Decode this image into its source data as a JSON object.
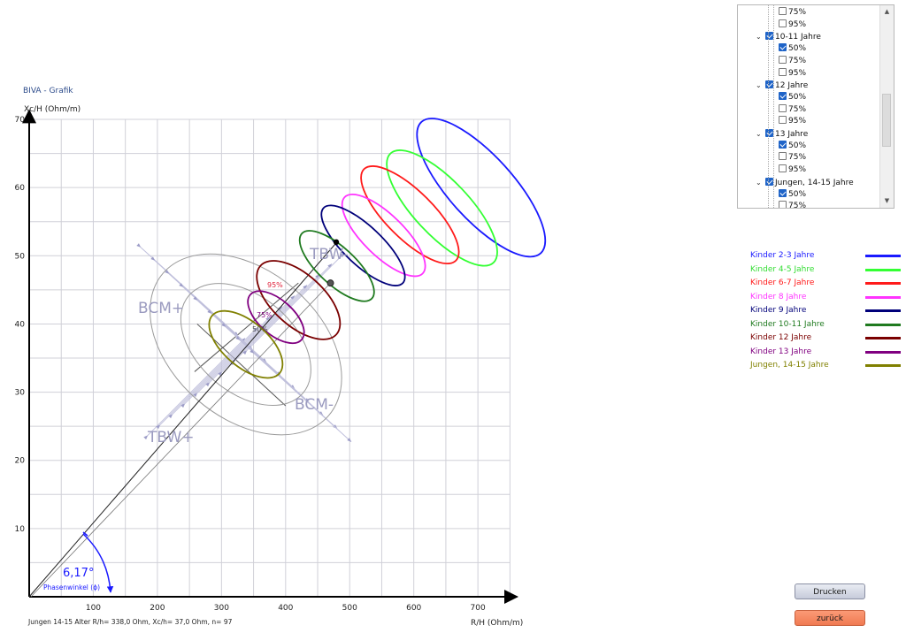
{
  "window_title": "BIVA - Grafik",
  "footer_text": "Jungen 14-15 Alter R/h= 338,0 Ohm, Xc/h= 37,0 Ohm, n= 97",
  "tree": {
    "rows": [
      {
        "indent": 2,
        "chev": false,
        "checked": false,
        "label": "75%"
      },
      {
        "indent": 2,
        "chev": false,
        "checked": false,
        "label": "95%"
      },
      {
        "indent": 1,
        "chev": true,
        "checked": true,
        "label": "10-11 Jahre"
      },
      {
        "indent": 2,
        "chev": false,
        "checked": true,
        "label": "50%"
      },
      {
        "indent": 2,
        "chev": false,
        "checked": false,
        "label": "75%"
      },
      {
        "indent": 2,
        "chev": false,
        "checked": false,
        "label": "95%"
      },
      {
        "indent": 1,
        "chev": true,
        "checked": true,
        "label": "12 Jahre"
      },
      {
        "indent": 2,
        "chev": false,
        "checked": true,
        "label": "50%"
      },
      {
        "indent": 2,
        "chev": false,
        "checked": false,
        "label": "75%"
      },
      {
        "indent": 2,
        "chev": false,
        "checked": false,
        "label": "95%"
      },
      {
        "indent": 1,
        "chev": true,
        "checked": true,
        "label": "13 Jahre"
      },
      {
        "indent": 2,
        "chev": false,
        "checked": true,
        "label": "50%"
      },
      {
        "indent": 2,
        "chev": false,
        "checked": false,
        "label": "75%"
      },
      {
        "indent": 2,
        "chev": false,
        "checked": false,
        "label": "95%"
      },
      {
        "indent": 1,
        "chev": true,
        "checked": true,
        "label": "Jungen, 14-15 Jahre"
      },
      {
        "indent": 2,
        "chev": false,
        "checked": true,
        "label": "50%"
      },
      {
        "indent": 2,
        "chev": false,
        "checked": false,
        "label": "75%"
      }
    ]
  },
  "legend": [
    {
      "label": "Kinder 2-3 Jahre",
      "color": "#1a1aff"
    },
    {
      "label": "Kinder 4-5 Jahre",
      "color": "#33ff33"
    },
    {
      "label": "Kinder 6-7 Jahre",
      "color": "#ff1a1a"
    },
    {
      "label": "Kinder 8 Jahre",
      "color": "#ff33ff"
    },
    {
      "label": "Kinder 9 Jahre",
      "color": "#00007a"
    },
    {
      "label": "Kinder 10-11 Jahre",
      "color": "#1f7a1f"
    },
    {
      "label": "Kinder 12 Jahre",
      "color": "#7a0000"
    },
    {
      "label": "Kinder 13 Jahre",
      "color": "#800080"
    },
    {
      "label": "Jungen, 14-15 Jahre",
      "color": "#808000"
    }
  ],
  "buttons": {
    "print": "Drucken",
    "back": "zurück"
  },
  "chart_data": {
    "type": "scatter",
    "xlabel": "R/H (Ohm/m)",
    "ylabel": "Xc/H (Ohm/m)",
    "xlim": [
      0,
      750
    ],
    "ylim": [
      0,
      70
    ],
    "xticks": [
      100,
      200,
      300,
      400,
      500,
      600,
      700
    ],
    "yticks": [
      10,
      20,
      30,
      40,
      50,
      60,
      70
    ],
    "grid": true,
    "annotations": {
      "tbw_plus": "TBW+",
      "tbw_minus": "TBW-",
      "bcm_plus": "BCM+",
      "bcm_minus": "BCM-",
      "phase_angle_value": "6,17°",
      "phase_angle_label": "Phasenwinkel (ϕ)",
      "pct_95": "95%",
      "pct_75": "75%",
      "pct_50": "50%"
    },
    "group_ellipses_50pct": [
      {
        "group": "Kinder 2-3 Jahre",
        "cx": 705,
        "cy": 60,
        "rx": 50,
        "ry": 13,
        "color": "#1a1aff"
      },
      {
        "group": "Kinder 4-5 Jahre",
        "cx": 644,
        "cy": 57,
        "rx": 43,
        "ry": 11,
        "color": "#33ff33"
      },
      {
        "group": "Kinder 6-7 Jahre",
        "cx": 594,
        "cy": 56,
        "rx": 37,
        "ry": 9.5,
        "color": "#ff1a1a"
      },
      {
        "group": "Kinder 8 Jahre",
        "cx": 553,
        "cy": 53,
        "rx": 32,
        "ry": 8,
        "color": "#ff33ff"
      },
      {
        "group": "Kinder 9 Jahre",
        "cx": 521,
        "cy": 51.5,
        "rx": 30,
        "ry": 8,
        "color": "#00007a"
      },
      {
        "group": "Kinder 10-11 Jahre",
        "cx": 480,
        "cy": 48.5,
        "rx": 29,
        "ry": 7,
        "color": "#1f7a1f"
      },
      {
        "group": "Kinder 12 Jahre",
        "cx": 420,
        "cy": 43.5,
        "rx": 40,
        "ry": 7.5,
        "color": "#7a0000"
      },
      {
        "group": "Kinder 13 Jahre",
        "cx": 385,
        "cy": 41,
        "rx": 27,
        "ry": 5,
        "color": "#800080"
      },
      {
        "group": "Jungen, 14-15 Jahre",
        "cx": 338,
        "cy": 37,
        "rx": 35,
        "ry": 6.5,
        "color": "#808000"
      }
    ],
    "tolerance_ellipses": [
      {
        "percentile": "75%",
        "cx": 338,
        "cy": 37,
        "rx": 75,
        "ry": 11
      },
      {
        "percentile": "95%",
        "cx": 338,
        "cy": 37,
        "rx": 115,
        "ry": 16
      }
    ],
    "measurements": [
      {
        "x": 479,
        "y": 52
      },
      {
        "x": 470,
        "y": 46
      }
    ],
    "phase_angle_line": {
      "from": [
        0,
        0
      ],
      "to": [
        480,
        52
      ]
    }
  }
}
